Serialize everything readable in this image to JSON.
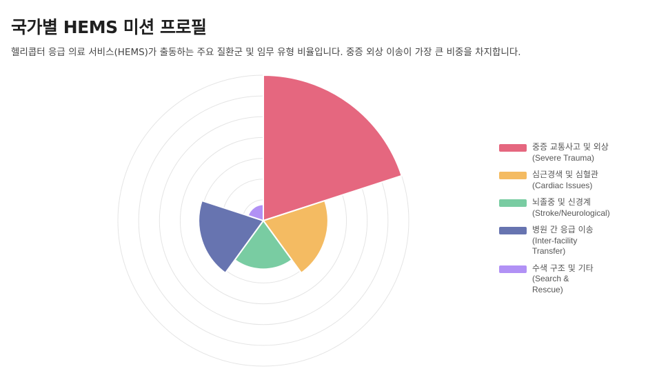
{
  "header": {
    "title": "국가별 HEMS 미션 프로필",
    "subtitle": "헬리콥터 응급 의료 서비스(HEMS)가 출동하는 주요 질환군 및 임무 유형 비율입니다. 중증 외상 이송이 가장 큰 비중을 차지합니다."
  },
  "chart_data": {
    "type": "polarArea",
    "title": "국가별 HEMS 미션 프로필",
    "subtitle": "헬리콥터 응급 의료 서비스(HEMS)가 출동하는 주요 질환군 및 임무 유형 비율입니다. 중증 외상 이송이 가장 큰 비중을 차지합니다.",
    "categories": [
      "중증 교통사고 및 외상 (Severe Trauma)",
      "심근경색 및 심혈관 (Cardiac Issues)",
      "뇌졸중 및 신경계 (Stroke/Neurological)",
      "병원 간 응급 이송 (Inter-facility Transfer)",
      "수색 구조 및 기타 (Search & Rescue)"
    ],
    "values": [
      45,
      20,
      15,
      20,
      5
    ],
    "rmax": 45,
    "grid": true,
    "ticks_visible": false,
    "legend_position": "right",
    "colors": [
      "#e5677f",
      "#f4bb62",
      "#79cca2",
      "#6774b0",
      "#b191f5"
    ],
    "legend": [
      {
        "line1": "중증 교통사고 및 외상",
        "line2": "(Severe Trauma)",
        "line3": ""
      },
      {
        "line1": "심근경색 및 심혈관",
        "line2": "(Cardiac Issues)",
        "line3": ""
      },
      {
        "line1": "뇌졸중 및 신경계",
        "line2": "(Stroke/Neurological)",
        "line3": ""
      },
      {
        "line1": "병원 간 응급 이송",
        "line2": "(Inter-facility",
        "line3": "Transfer)"
      },
      {
        "line1": "수색 구조 및 기타",
        "line2": "(Search &",
        "line3": "Rescue)"
      }
    ]
  }
}
